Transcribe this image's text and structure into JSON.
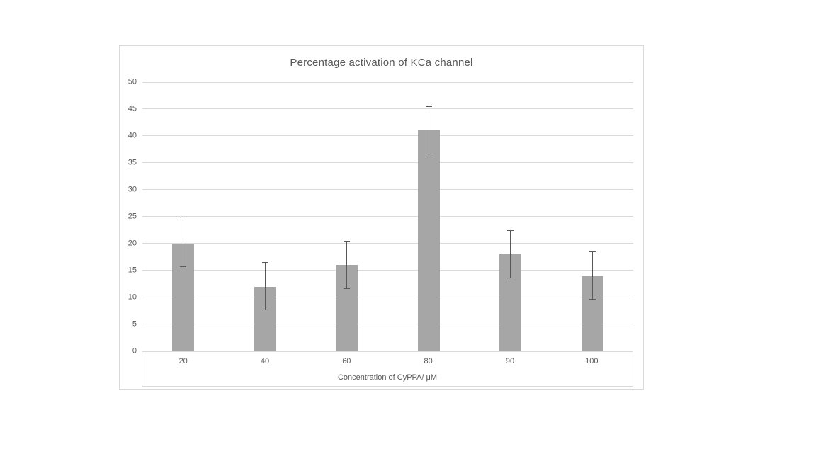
{
  "chart_data": {
    "type": "bar",
    "title": "Percentage activation of KCa channel",
    "xlabel": "Concentration of CyPPA/ μM",
    "ylabel": "",
    "categories": [
      "20",
      "40",
      "60",
      "80",
      "90",
      "100"
    ],
    "series": [
      {
        "name": "Percentage activation",
        "values": [
          20,
          12,
          16,
          41,
          18,
          14
        ],
        "errors": [
          4.4,
          4.4,
          4.4,
          4.4,
          4.4,
          4.4
        ]
      }
    ],
    "ylim": [
      0,
      50
    ],
    "ytick_step": 5,
    "yticks": [
      0,
      5,
      10,
      15,
      20,
      25,
      30,
      35,
      40,
      45,
      50
    ],
    "grid": "horizontal",
    "legend": "none",
    "colors": {
      "bar": "#a6a6a6",
      "gridline": "#d9d9d9",
      "text": "#595959",
      "error_bar": "#595959",
      "chart_border": "#d9d9d9",
      "background": "#ffffff"
    }
  }
}
